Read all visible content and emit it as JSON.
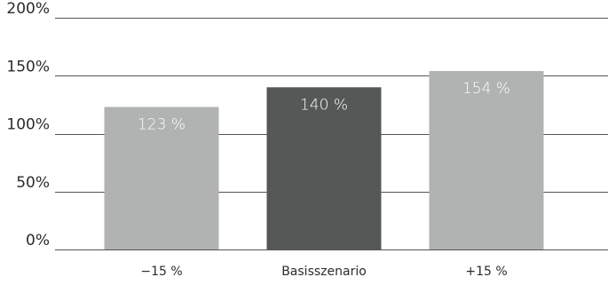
{
  "chart_data": {
    "type": "bar",
    "title": "",
    "xlabel": "",
    "ylabel": "",
    "categories": [
      "−15 %",
      "Basisszenario",
      "+15 %"
    ],
    "values": [
      123,
      140,
      154
    ],
    "data_labels": [
      "123 %",
      "140 %",
      "154 %"
    ],
    "bar_colors": [
      "#b0b3b2",
      "#555857",
      "#b0b3b2"
    ],
    "ylim": [
      0,
      200
    ],
    "yticks": [
      0,
      50,
      100,
      150,
      200
    ],
    "ytick_labels": [
      "0%",
      "50%",
      "100%",
      "150%",
      "200%"
    ],
    "grid": true,
    "legend": "none"
  }
}
